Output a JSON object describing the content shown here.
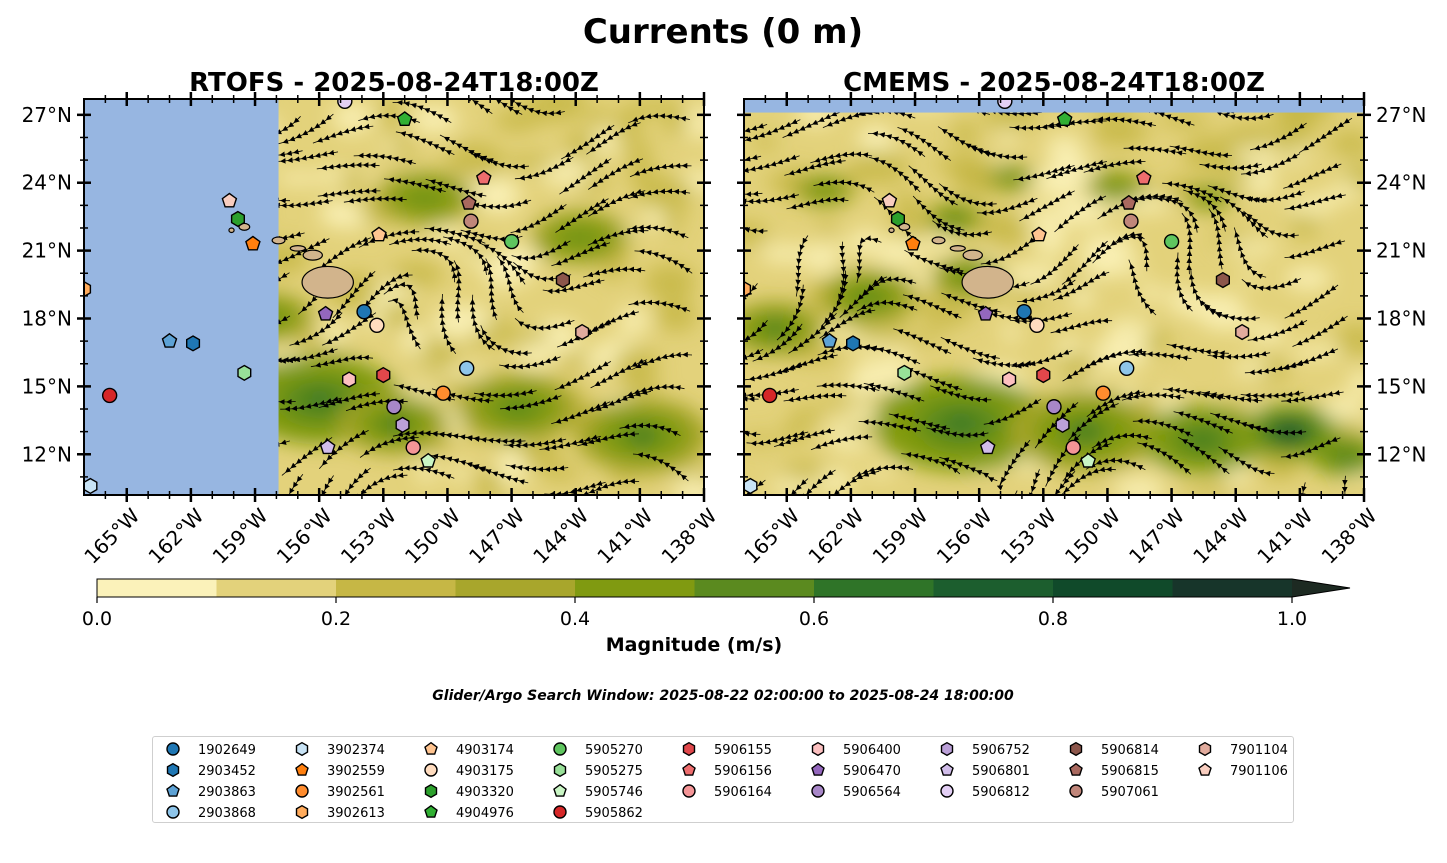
{
  "figure": {
    "title": "Currents (0 m)",
    "search_window": "Glider/Argo Search Window: 2025-08-22 02:00:00 to 2025-08-24 18:00:00"
  },
  "colors": {
    "land": "#d2b48c",
    "out_of_domain": "#97b6e1",
    "scale": [
      "#fbf2ba",
      "#e3d27b",
      "#c6b745",
      "#a8a62c",
      "#809a11",
      "#5b8a1f",
      "#2f7428",
      "#1c5e2e",
      "#104a2a",
      "#17352a",
      "#1d2a22"
    ]
  },
  "chart_data": [
    {
      "type": "heatmap",
      "subtype": "streamplot",
      "title": "RTOFS - 2025-08-24T18:00Z",
      "x_ticks": [
        "165°W",
        "162°W",
        "159°W",
        "156°W",
        "153°W",
        "150°W",
        "147°W",
        "144°W",
        "141°W",
        "138°W"
      ],
      "y_ticks": [
        "12°N",
        "15°N",
        "18°N",
        "21°N",
        "24°N",
        "27°N"
      ],
      "xlim": [
        -167,
        -138
      ],
      "ylim": [
        10.2,
        27.7
      ],
      "no_data_region": {
        "lon_max": -157.9
      }
    },
    {
      "type": "heatmap",
      "subtype": "streamplot",
      "title": "CMEMS - 2025-08-24T18:00Z",
      "x_ticks": [
        "165°W",
        "162°W",
        "159°W",
        "156°W",
        "153°W",
        "150°W",
        "147°W",
        "144°W",
        "141°W",
        "138°W"
      ],
      "y_ticks": [
        "12°N",
        "15°N",
        "18°N",
        "21°N",
        "24°N",
        "27°N"
      ],
      "xlim": [
        -167,
        -138
      ],
      "ylim": [
        10.2,
        27.7
      ],
      "no_data_region": {
        "lat_min": 27.1
      }
    },
    {
      "type": "colorbar",
      "label": "Magnitude (m/s)",
      "ticks": [
        "0.0",
        "0.2",
        "0.4",
        "0.6",
        "0.8",
        "1.0"
      ],
      "levels": [
        0,
        0.1,
        0.2,
        0.3,
        0.4,
        0.5,
        0.6,
        0.7,
        0.8,
        0.9,
        1.0
      ],
      "extend": "max"
    }
  ],
  "platforms": [
    {
      "id": "1902649",
      "marker": "circle",
      "color": "#1f77b4",
      "lon": -153.9,
      "lat": 18.3
    },
    {
      "id": "2903452",
      "marker": "hexagon",
      "color": "#1f77b4",
      "lon": -161.9,
      "lat": 16.9
    },
    {
      "id": "2903863",
      "marker": "pentagon",
      "color": "#5da2d5",
      "lon": -163.0,
      "lat": 17.0
    },
    {
      "id": "2903868",
      "marker": "circle",
      "color": "#8ec5ea",
      "lon": -149.1,
      "lat": 15.8
    },
    {
      "id": "3902374",
      "marker": "hexagon",
      "color": "#c8e3f5",
      "lon": -166.7,
      "lat": 10.6
    },
    {
      "id": "3902559",
      "marker": "pentagon",
      "color": "#ff7f0e",
      "lon": -159.1,
      "lat": 21.3
    },
    {
      "id": "3902561",
      "marker": "circle",
      "color": "#ff8c2e",
      "lon": -150.2,
      "lat": 14.7
    },
    {
      "id": "3902613",
      "marker": "hexagon",
      "color": "#ffab5c",
      "lon": -167.0,
      "lat": 19.3
    },
    {
      "id": "4903174",
      "marker": "pentagon",
      "color": "#ffc490",
      "lon": -153.2,
      "lat": 21.7
    },
    {
      "id": "4903175",
      "marker": "circle",
      "color": "#ffdcbf",
      "lon": -153.3,
      "lat": 17.7
    },
    {
      "id": "4903320",
      "marker": "hexagon",
      "color": "#2ca02c",
      "lon": -159.8,
      "lat": 22.4
    },
    {
      "id": "4904976",
      "marker": "pentagon",
      "color": "#31b033",
      "lon": -152.0,
      "lat": 26.8
    },
    {
      "id": "5905270",
      "marker": "circle",
      "color": "#5fc55f",
      "lon": -147.0,
      "lat": 21.4
    },
    {
      "id": "5905275",
      "marker": "hexagon",
      "color": "#98e098",
      "lon": -159.5,
      "lat": 15.6
    },
    {
      "id": "5905746",
      "marker": "pentagon",
      "color": "#c9f5c4",
      "lon": -150.9,
      "lat": 11.7
    },
    {
      "id": "5905862",
      "marker": "circle",
      "color": "#d62728",
      "lon": -165.8,
      "lat": 14.6
    },
    {
      "id": "5906155",
      "marker": "hexagon",
      "color": "#e0474b",
      "lon": -153.0,
      "lat": 15.5
    },
    {
      "id": "5906156",
      "marker": "pentagon",
      "color": "#ee6d6e",
      "lon": -148.3,
      "lat": 24.2
    },
    {
      "id": "5906164",
      "marker": "circle",
      "color": "#f49597",
      "lon": -151.6,
      "lat": 12.3
    },
    {
      "id": "5906400",
      "marker": "hexagon",
      "color": "#fcc0c0",
      "lon": -154.6,
      "lat": 15.3
    },
    {
      "id": "5906470",
      "marker": "pentagon",
      "color": "#9467bd",
      "lon": -155.7,
      "lat": 18.2
    },
    {
      "id": "5906564",
      "marker": "circle",
      "color": "#a887c8",
      "lon": -152.5,
      "lat": 14.1
    },
    {
      "id": "5906752",
      "marker": "hexagon",
      "color": "#bba0d8",
      "lon": -152.1,
      "lat": 13.3
    },
    {
      "id": "5906801",
      "marker": "pentagon",
      "color": "#d1bdea",
      "lon": -155.6,
      "lat": 12.3
    },
    {
      "id": "5906812",
      "marker": "circle",
      "color": "#e3cff5",
      "lon": -154.8,
      "lat": 27.6
    },
    {
      "id": "5906814",
      "marker": "hexagon",
      "color": "#8c564b",
      "lon": -144.6,
      "lat": 19.7
    },
    {
      "id": "5906815",
      "marker": "pentagon",
      "color": "#a9695f",
      "lon": -149.0,
      "lat": 23.1
    },
    {
      "id": "5907061",
      "marker": "circle",
      "color": "#c0867a",
      "lon": -148.9,
      "lat": 22.3
    },
    {
      "id": "7901104",
      "marker": "hexagon",
      "color": "#e1ab9d",
      "lon": -143.7,
      "lat": 17.4
    },
    {
      "id": "7901106",
      "marker": "pentagon",
      "color": "#f8cdbf",
      "lon": -160.2,
      "lat": 23.2
    }
  ]
}
